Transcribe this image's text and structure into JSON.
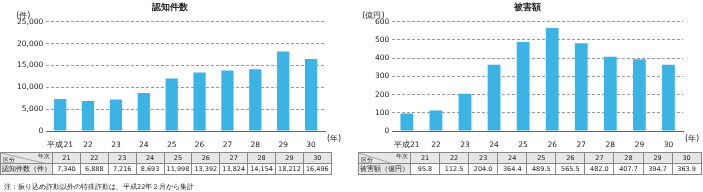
{
  "chart_data": [
    {
      "type": "bar",
      "title": "認知件数",
      "ylabel": "(件)",
      "xlabel": "(年)",
      "categories": [
        "平成21",
        "22",
        "23",
        "24",
        "25",
        "26",
        "27",
        "28",
        "29",
        "30"
      ],
      "values": [
        7340,
        6888,
        7216,
        8693,
        11998,
        13392,
        13824,
        14154,
        18212,
        16496
      ],
      "color": "#3bb3e4",
      "ylim": [
        0,
        25000
      ],
      "yticks": [
        0,
        {
          "value": 5000,
          "label": "5,000"
        },
        {
          "value": 10000,
          "label": "10,000"
        },
        {
          "value": 15000,
          "label": "15,000"
        },
        {
          "value": 20000,
          "label": "20,000"
        },
        {
          "value": 25000,
          "label": "25,000"
        }
      ],
      "grid": true
    },
    {
      "type": "bar",
      "title": "被害額",
      "ylabel": "(億円)",
      "xlabel": "(年)",
      "categories": [
        "平成21",
        "22",
        "23",
        "24",
        "25",
        "26",
        "27",
        "28",
        "29",
        "30"
      ],
      "values": [
        95.8,
        112.5,
        204.0,
        364.4,
        489.5,
        565.5,
        482.0,
        407.7,
        394.7,
        363.9
      ],
      "color": "#3bb3e4",
      "ylim": [
        0,
        600
      ],
      "yticks": [
        0,
        100,
        200,
        300,
        400,
        500,
        600
      ],
      "grid": true
    }
  ],
  "tables": [
    {
      "corner": {
        "top": "年次",
        "bottom": "区分"
      },
      "columns": [
        "21",
        "22",
        "23",
        "24",
        "25",
        "26",
        "27",
        "28",
        "29",
        "30"
      ],
      "rows": [
        [
          "認知件数（件）",
          "7,340",
          "6,888",
          "7,216",
          "8,693",
          "11,998",
          "13,392",
          "13,824",
          "14,154",
          "18,212",
          "16,496"
        ]
      ]
    },
    {
      "corner": {
        "top": "年次",
        "bottom": "区分"
      },
      "columns": [
        "21",
        "22",
        "23",
        "24",
        "25",
        "26",
        "27",
        "28",
        "29",
        "30"
      ],
      "rows": [
        [
          "被害額（億円）",
          "95.8",
          "112.5",
          "204.0",
          "364.4",
          "489.5",
          "565.5",
          "482.0",
          "407.7",
          "394.7",
          "363.9"
        ]
      ]
    }
  ],
  "note": "注：振り込め詐欺以外の特殊詐欺は、平成22年２月から集計"
}
